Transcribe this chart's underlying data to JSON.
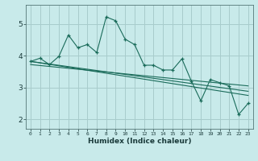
{
  "title": "",
  "xlabel": "Humidex (Indice chaleur)",
  "xlim": [
    -0.5,
    23.5
  ],
  "ylim": [
    1.7,
    5.6
  ],
  "xticks": [
    0,
    1,
    2,
    3,
    4,
    5,
    6,
    7,
    8,
    9,
    10,
    11,
    12,
    13,
    14,
    15,
    16,
    17,
    18,
    19,
    20,
    21,
    22,
    23
  ],
  "yticks": [
    2,
    3,
    4,
    5
  ],
  "bg_color": "#c8eaea",
  "line_color": "#1a6b5a",
  "grid_color": "#a8cccc",
  "series1": [
    3.82,
    3.92,
    3.72,
    3.98,
    4.65,
    4.25,
    4.35,
    4.1,
    5.22,
    5.1,
    4.52,
    4.35,
    3.7,
    3.7,
    3.55,
    3.55,
    3.9,
    3.2,
    2.58,
    3.25,
    3.15,
    3.05,
    2.15,
    2.5
  ],
  "trend1_x": [
    0,
    23
  ],
  "trend1_y": [
    3.82,
    2.75
  ],
  "trend2_x": [
    0,
    23
  ],
  "trend2_y": [
    3.72,
    3.05
  ],
  "trend3_x": [
    0,
    23
  ],
  "trend3_y": [
    3.82,
    2.88
  ]
}
